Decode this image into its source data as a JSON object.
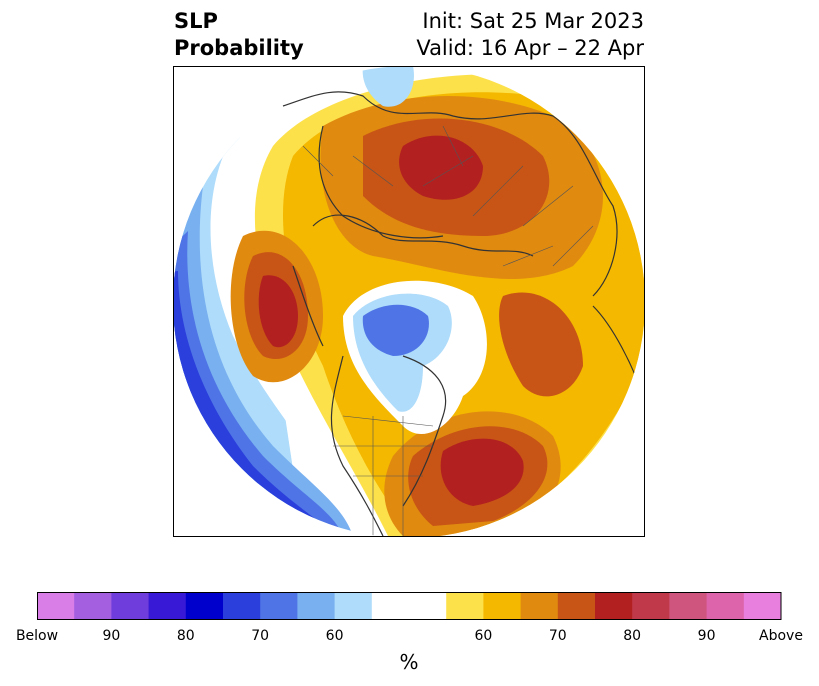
{
  "title": {
    "left_line1": "SLP",
    "left_line2": "Probability",
    "right_line1": "Init: Sat 25 Mar 2023",
    "right_line2": "Valid: 16 Apr – 22 Apr"
  },
  "colorbar": {
    "colors": [
      "#d87ee6",
      "#a35fe0",
      "#6e3ddb",
      "#3719d6",
      "#0000cc",
      "#2a3fdc",
      "#4f74e6",
      "#78b0f0",
      "#aedcfa",
      "#ffffff",
      "#ffffff",
      "#fde14a",
      "#f4b800",
      "#e08a10",
      "#c85515",
      "#b32020",
      "#c0394a",
      "#d0557e",
      "#dd64aa",
      "#e87fde"
    ],
    "labels": [
      "Below",
      "90",
      "80",
      "70",
      "60",
      "60",
      "70",
      "80",
      "90",
      "Above"
    ],
    "unit": "%"
  },
  "map": {
    "projection": "north-polar-stereographic",
    "field": "SLP probability"
  }
}
